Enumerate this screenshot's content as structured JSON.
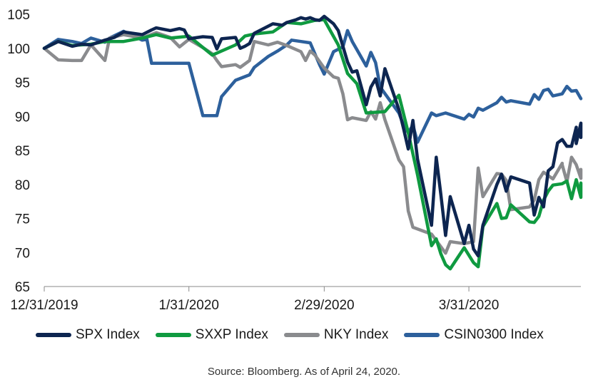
{
  "source_note": "Source: Bloomberg. As of April 24, 2020.",
  "chart_data": {
    "type": "line",
    "title": "",
    "xlabel": "",
    "ylabel": "",
    "ylim": [
      65,
      105
    ],
    "yticks": [
      65,
      70,
      75,
      80,
      85,
      90,
      95,
      100,
      105
    ],
    "xticks": [
      {
        "label": "12/31/2019",
        "date": "2019-12-31"
      },
      {
        "label": "1/31/2020",
        "date": "2020-01-31"
      },
      {
        "label": "2/29/2020",
        "date": "2020-02-29"
      },
      {
        "label": "3/31/2020",
        "date": "2020-03-31"
      }
    ],
    "xlim": [
      "2019-12-31",
      "2020-04-24"
    ],
    "grid": false,
    "legend_position": "bottom",
    "series": [
      {
        "name": "SPX Index",
        "color": "#0d2550",
        "points": [
          [
            "2019-12-31",
            100
          ],
          [
            "2020-01-03",
            101
          ],
          [
            "2020-01-06",
            100.3
          ],
          [
            "2020-01-08",
            100.6
          ],
          [
            "2020-01-10",
            100.5
          ],
          [
            "2020-01-13",
            101.2
          ],
          [
            "2020-01-15",
            101.6
          ],
          [
            "2020-01-17",
            102.4
          ],
          [
            "2020-01-21",
            102
          ],
          [
            "2020-01-23",
            102.7
          ],
          [
            "2020-01-24",
            103
          ],
          [
            "2020-01-27",
            102.6
          ],
          [
            "2020-01-29",
            102.9
          ],
          [
            "2020-01-30",
            102.7
          ],
          [
            "2020-01-31",
            101.4
          ],
          [
            "2020-02-03",
            101.7
          ],
          [
            "2020-02-05",
            101.6
          ],
          [
            "2020-02-06",
            99.9
          ],
          [
            "2020-02-07",
            101.4
          ],
          [
            "2020-02-10",
            101.6
          ],
          [
            "2020-02-11",
            100
          ],
          [
            "2020-02-12",
            100.3
          ],
          [
            "2020-02-13",
            100.7
          ],
          [
            "2020-02-14",
            102.2
          ],
          [
            "2020-02-18",
            103.6
          ],
          [
            "2020-02-20",
            103.4
          ],
          [
            "2020-02-21",
            103.8
          ],
          [
            "2020-02-23",
            104.2
          ],
          [
            "2020-02-24",
            104.5
          ],
          [
            "2020-02-25",
            104.3
          ],
          [
            "2020-02-26",
            104.5
          ],
          [
            "2020-02-27",
            104.2
          ],
          [
            "2020-02-28",
            104.1
          ],
          [
            "2020-02-29",
            104.7
          ],
          [
            "2020-03-02",
            103.6
          ],
          [
            "2020-03-03",
            102.6
          ],
          [
            "2020-03-04",
            100.3
          ],
          [
            "2020-03-05",
            98
          ],
          [
            "2020-03-06",
            96.5
          ],
          [
            "2020-03-07",
            96.7
          ],
          [
            "2020-03-09",
            91.7
          ],
          [
            "2020-03-10",
            94.3
          ],
          [
            "2020-03-11",
            95.5
          ],
          [
            "2020-03-12",
            93
          ],
          [
            "2020-03-13",
            97
          ],
          [
            "2020-03-16",
            91
          ],
          [
            "2020-03-17",
            88.2
          ],
          [
            "2020-03-18",
            85.2
          ],
          [
            "2020-03-19",
            89.4
          ],
          [
            "2020-03-20",
            83.7
          ],
          [
            "2020-03-23",
            74
          ],
          [
            "2020-03-24",
            84
          ],
          [
            "2020-03-25",
            78.5
          ],
          [
            "2020-03-26",
            72.5
          ],
          [
            "2020-03-27",
            78.2
          ],
          [
            "2020-03-30",
            71.3
          ],
          [
            "2020-03-31",
            74
          ],
          [
            "2020-04-01",
            70.5
          ],
          [
            "2020-04-02",
            69.5
          ],
          [
            "2020-04-03",
            74
          ],
          [
            "2020-04-06",
            80
          ],
          [
            "2020-04-07",
            81.5
          ],
          [
            "2020-04-08",
            79
          ],
          [
            "2020-04-09",
            81.1
          ],
          [
            "2020-04-13",
            80.2
          ],
          [
            "2020-04-14",
            75.5
          ],
          [
            "2020-04-15",
            78.1
          ],
          [
            "2020-04-16",
            76.7
          ],
          [
            "2020-04-17",
            82
          ],
          [
            "2020-04-18",
            82.6
          ],
          [
            "2020-04-19",
            86.1
          ],
          [
            "2020-04-20",
            86.6
          ],
          [
            "2020-04-21",
            85.6
          ],
          [
            "2020-04-22",
            85.6
          ],
          [
            "2020-04-23",
            88.4
          ],
          [
            "2020-04-23",
            86
          ],
          [
            "2020-04-24",
            89
          ],
          [
            "2020-04-24",
            86.9
          ]
        ]
      },
      {
        "name": "SXXP Index",
        "color": "#0f9a40",
        "points": [
          [
            "2019-12-31",
            100
          ],
          [
            "2020-01-03",
            101
          ],
          [
            "2020-01-06",
            100.4
          ],
          [
            "2020-01-10",
            100.6
          ],
          [
            "2020-01-13",
            101
          ],
          [
            "2020-01-17",
            101
          ],
          [
            "2020-01-21",
            101.5
          ],
          [
            "2020-01-24",
            102
          ],
          [
            "2020-01-27",
            101.5
          ],
          [
            "2020-01-30",
            101.7
          ],
          [
            "2020-01-31",
            101.8
          ],
          [
            "2020-02-05",
            99
          ],
          [
            "2020-02-07",
            99.6
          ],
          [
            "2020-02-10",
            100.5
          ],
          [
            "2020-02-12",
            101.8
          ],
          [
            "2020-02-14",
            102.1
          ],
          [
            "2020-02-18",
            102.4
          ],
          [
            "2020-02-21",
            103.8
          ],
          [
            "2020-02-24",
            103.6
          ],
          [
            "2020-02-27",
            104.1
          ],
          [
            "2020-02-29",
            104.2
          ],
          [
            "2020-03-03",
            100.5
          ],
          [
            "2020-03-05",
            96.3
          ],
          [
            "2020-03-07",
            94.8
          ],
          [
            "2020-03-09",
            90.5
          ],
          [
            "2020-03-11",
            90.6
          ],
          [
            "2020-03-13",
            90.7
          ],
          [
            "2020-03-16",
            93.1
          ],
          [
            "2020-03-18",
            87.6
          ],
          [
            "2020-03-20",
            81.4
          ],
          [
            "2020-03-23",
            71
          ],
          [
            "2020-03-24",
            72
          ],
          [
            "2020-03-25",
            69.8
          ],
          [
            "2020-03-26",
            68.2
          ],
          [
            "2020-03-27",
            67.6
          ],
          [
            "2020-03-30",
            70.7
          ],
          [
            "2020-04-01",
            68.5
          ],
          [
            "2020-04-02",
            67.9
          ],
          [
            "2020-04-03",
            73.8
          ],
          [
            "2020-04-06",
            77.2
          ],
          [
            "2020-04-07",
            75
          ],
          [
            "2020-04-08",
            75.1
          ],
          [
            "2020-04-09",
            77
          ],
          [
            "2020-04-13",
            74.5
          ],
          [
            "2020-04-14",
            74.4
          ],
          [
            "2020-04-15",
            75.3
          ],
          [
            "2020-04-16",
            77.7
          ],
          [
            "2020-04-17",
            79
          ],
          [
            "2020-04-18",
            79.9
          ],
          [
            "2020-04-20",
            80.1
          ],
          [
            "2020-04-21",
            80.5
          ],
          [
            "2020-04-22",
            77.9
          ],
          [
            "2020-04-23",
            80.7
          ],
          [
            "2020-04-23",
            80.7
          ],
          [
            "2020-04-24",
            78.1
          ],
          [
            "2020-04-24",
            80.2
          ],
          [
            "2020-04-24",
            79.5
          ]
        ]
      },
      {
        "name": "NKY Index",
        "color": "#8a8b8e",
        "points": [
          [
            "2019-12-31",
            100
          ],
          [
            "2020-01-03",
            98.3
          ],
          [
            "2020-01-06",
            98.2
          ],
          [
            "2020-01-08",
            98.2
          ],
          [
            "2020-01-10",
            100.5
          ],
          [
            "2020-01-13",
            98.2
          ],
          [
            "2020-01-14",
            101.5
          ],
          [
            "2020-01-17",
            102
          ],
          [
            "2020-01-21",
            101.5
          ],
          [
            "2020-01-24",
            102.3
          ],
          [
            "2020-01-27",
            101.6
          ],
          [
            "2020-01-29",
            100.2
          ],
          [
            "2020-01-31",
            101.3
          ],
          [
            "2020-02-03",
            100.1
          ],
          [
            "2020-02-05",
            99.2
          ],
          [
            "2020-02-06",
            98.2
          ],
          [
            "2020-02-07",
            97.3
          ],
          [
            "2020-02-10",
            97.6
          ],
          [
            "2020-02-11",
            97.2
          ],
          [
            "2020-02-13",
            98.2
          ],
          [
            "2020-02-14",
            101
          ],
          [
            "2020-02-17",
            100.5
          ],
          [
            "2020-02-19",
            100.9
          ],
          [
            "2020-02-21",
            100.4
          ],
          [
            "2020-02-24",
            99.5
          ],
          [
            "2020-02-25",
            98.2
          ],
          [
            "2020-02-26",
            99.6
          ],
          [
            "2020-02-27",
            99
          ],
          [
            "2020-02-29",
            97.1
          ],
          [
            "2020-03-02",
            95.8
          ],
          [
            "2020-03-03",
            95.6
          ],
          [
            "2020-03-04",
            93.3
          ],
          [
            "2020-03-05",
            89.5
          ],
          [
            "2020-03-06",
            89.8
          ],
          [
            "2020-03-09",
            89.4
          ],
          [
            "2020-03-10",
            90.7
          ],
          [
            "2020-03-11",
            89.6
          ],
          [
            "2020-03-12",
            92
          ],
          [
            "2020-03-13",
            89.5
          ],
          [
            "2020-03-16",
            83.6
          ],
          [
            "2020-03-17",
            82.6
          ],
          [
            "2020-03-18",
            76.1
          ],
          [
            "2020-03-19",
            73.7
          ],
          [
            "2020-03-23",
            72.7
          ],
          [
            "2020-03-26",
            69.9
          ],
          [
            "2020-03-27",
            71.6
          ],
          [
            "2020-03-30",
            71.3
          ],
          [
            "2020-04-01",
            71.6
          ],
          [
            "2020-04-02",
            82.4
          ],
          [
            "2020-04-03",
            78.2
          ],
          [
            "2020-04-06",
            81.6
          ],
          [
            "2020-04-07",
            81.5
          ],
          [
            "2020-04-08",
            80.6
          ],
          [
            "2020-04-09",
            76.3
          ],
          [
            "2020-04-13",
            76.7
          ],
          [
            "2020-04-14",
            77.7
          ],
          [
            "2020-04-15",
            80.7
          ],
          [
            "2020-04-16",
            81.8
          ],
          [
            "2020-04-17",
            81.3
          ],
          [
            "2020-04-18",
            80.8
          ],
          [
            "2020-04-20",
            83.1
          ],
          [
            "2020-04-20",
            82.9
          ],
          [
            "2020-04-21",
            80.4
          ],
          [
            "2020-04-22",
            84
          ],
          [
            "2020-04-23",
            82.9
          ],
          [
            "2020-04-24",
            80.9
          ],
          [
            "2020-04-24",
            82.2
          ],
          [
            "2020-04-24",
            81.4
          ]
        ]
      },
      {
        "name": "CSIN0300 Index",
        "color": "#2d609c",
        "points": [
          [
            "2019-12-31",
            100
          ],
          [
            "2020-01-03",
            101.3
          ],
          [
            "2020-01-06",
            101
          ],
          [
            "2020-01-08",
            100.7
          ],
          [
            "2020-01-10",
            101.5
          ],
          [
            "2020-01-13",
            100.9
          ],
          [
            "2020-01-14",
            101.5
          ],
          [
            "2020-01-17",
            102.5
          ],
          [
            "2020-01-21",
            101.2
          ],
          [
            "2020-01-22",
            101.3
          ],
          [
            "2020-01-23",
            97.8
          ],
          [
            "2020-01-27",
            97.8
          ],
          [
            "2020-01-31",
            97.8
          ],
          [
            "2020-02-03",
            90.1
          ],
          [
            "2020-02-05",
            90.1
          ],
          [
            "2020-02-06",
            90.1
          ],
          [
            "2020-02-07",
            92.9
          ],
          [
            "2020-02-10",
            95.3
          ],
          [
            "2020-02-13",
            96.1
          ],
          [
            "2020-02-14",
            97.2
          ],
          [
            "2020-02-17",
            98.8
          ],
          [
            "2020-02-19",
            99.6
          ],
          [
            "2020-02-21",
            100.5
          ],
          [
            "2020-02-22",
            101.2
          ],
          [
            "2020-02-24",
            101
          ],
          [
            "2020-02-26",
            100.8
          ],
          [
            "2020-02-28",
            97.6
          ],
          [
            "2020-02-29",
            96.2
          ],
          [
            "2020-03-02",
            99.5
          ],
          [
            "2020-03-04",
            100.2
          ],
          [
            "2020-03-05",
            102.6
          ],
          [
            "2020-03-06",
            101
          ],
          [
            "2020-03-09",
            97.4
          ],
          [
            "2020-03-10",
            99.4
          ],
          [
            "2020-03-11",
            97.9
          ],
          [
            "2020-03-12",
            94.3
          ],
          [
            "2020-03-16",
            90.5
          ],
          [
            "2020-03-17",
            88.7
          ],
          [
            "2020-03-18",
            87.6
          ],
          [
            "2020-03-19",
            88.7
          ],
          [
            "2020-03-20",
            86.2
          ],
          [
            "2020-03-23",
            90.5
          ],
          [
            "2020-03-24",
            90.1
          ],
          [
            "2020-03-26",
            90.5
          ],
          [
            "2020-03-30",
            89.6
          ],
          [
            "2020-03-31",
            90.3
          ],
          [
            "2020-04-01",
            89.9
          ],
          [
            "2020-04-02",
            91.2
          ],
          [
            "2020-04-03",
            90.9
          ],
          [
            "2020-04-06",
            92
          ],
          [
            "2020-04-07",
            92.8
          ],
          [
            "2020-04-08",
            92.1
          ],
          [
            "2020-04-09",
            92.3
          ],
          [
            "2020-04-13",
            91.8
          ],
          [
            "2020-04-14",
            93.2
          ],
          [
            "2020-04-15",
            92.5
          ],
          [
            "2020-04-16",
            93.8
          ],
          [
            "2020-04-17",
            94
          ],
          [
            "2020-04-18",
            93
          ],
          [
            "2020-04-20",
            93.3
          ],
          [
            "2020-04-21",
            94.4
          ],
          [
            "2020-04-22",
            93.7
          ],
          [
            "2020-04-23",
            93.8
          ],
          [
            "2020-04-24",
            92.6
          ]
        ]
      }
    ]
  }
}
